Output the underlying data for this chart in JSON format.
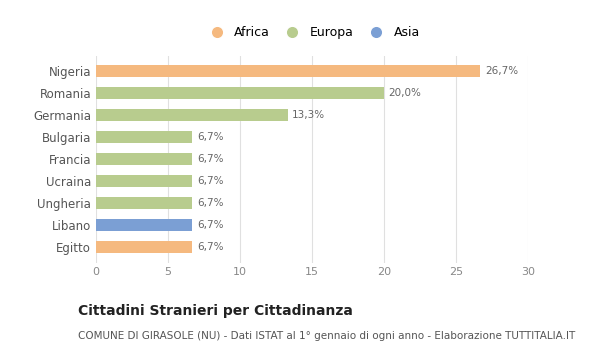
{
  "categories": [
    "Nigeria",
    "Romania",
    "Germania",
    "Bulgaria",
    "Francia",
    "Ucraina",
    "Ungheria",
    "Libano",
    "Egitto"
  ],
  "values": [
    26.7,
    20.0,
    13.3,
    6.7,
    6.7,
    6.7,
    6.7,
    6.7,
    6.7
  ],
  "labels": [
    "26,7%",
    "20,0%",
    "13,3%",
    "6,7%",
    "6,7%",
    "6,7%",
    "6,7%",
    "6,7%",
    "6,7%"
  ],
  "colors": [
    "#f5b97f",
    "#b8cc8e",
    "#b8cc8e",
    "#b8cc8e",
    "#b8cc8e",
    "#b8cc8e",
    "#b8cc8e",
    "#7b9fd4",
    "#f5b97f"
  ],
  "legend": [
    {
      "label": "Africa",
      "color": "#f5b97f"
    },
    {
      "label": "Europa",
      "color": "#b8cc8e"
    },
    {
      "label": "Asia",
      "color": "#7b9fd4"
    }
  ],
  "xlim": [
    0,
    30
  ],
  "xticks": [
    0,
    5,
    10,
    15,
    20,
    25,
    30
  ],
  "title": "Cittadini Stranieri per Cittadinanza",
  "subtitle": "COMUNE DI GIRASOLE (NU) - Dati ISTAT al 1° gennaio di ogni anno - Elaborazione TUTTITALIA.IT",
  "background_color": "#ffffff",
  "bar_height": 0.55,
  "label_fontsize": 7.5,
  "ytick_fontsize": 8.5,
  "xtick_fontsize": 8,
  "title_fontsize": 10,
  "subtitle_fontsize": 7.5
}
